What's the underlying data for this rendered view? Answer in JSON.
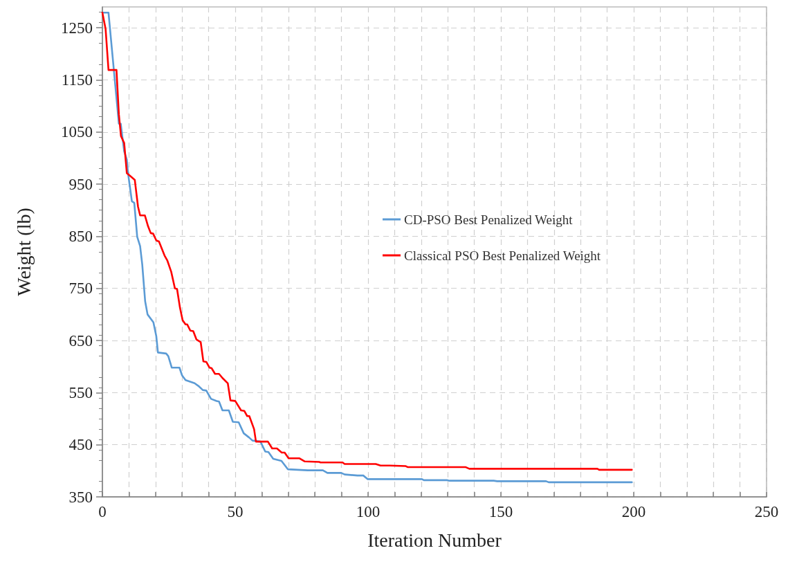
{
  "chart_data": {
    "type": "line",
    "xlabel": "Iteration Number",
    "ylabel": "Weight (lb)",
    "xlim": [
      0,
      250
    ],
    "xticks": [
      0,
      {
        "value": 10,
        "label": null
      },
      {
        "value": 20,
        "label": null
      },
      {
        "value": 30,
        "label": null
      },
      {
        "value": 40,
        "label": null
      },
      50,
      {
        "value": 60,
        "label": null
      },
      {
        "value": 70,
        "label": null
      },
      {
        "value": 80,
        "label": null
      },
      {
        "value": 90,
        "label": null
      },
      100,
      {
        "value": 110,
        "label": null
      },
      {
        "value": 120,
        "label": null
      },
      {
        "value": 130,
        "label": null
      },
      {
        "value": 140,
        "label": null
      },
      150,
      {
        "value": 160,
        "label": null
      },
      {
        "value": 170,
        "label": null
      },
      {
        "value": 180,
        "label": null
      },
      {
        "value": 190,
        "label": null
      },
      200,
      {
        "value": 210,
        "label": null
      },
      {
        "value": 220,
        "label": null
      },
      {
        "value": 230,
        "label": null
      },
      {
        "value": 240,
        "label": null
      },
      250
    ],
    "ylim": [
      350,
      1290
    ],
    "yticks": [
      350,
      450,
      550,
      650,
      750,
      850,
      950,
      1050,
      1150,
      1250
    ],
    "grid": true,
    "legend": "right",
    "marker": "none",
    "line_style": "solid",
    "series": [
      {
        "name": "CD-PSO Best Penalized Weight",
        "color": "#5b9bd5",
        "x": [
          0,
          2.3,
          6.2,
          6.9,
          8.2,
          9.2,
          9.6,
          11.1,
          12,
          13.1,
          14.2,
          15,
          16.1,
          17,
          19.2,
          20.3,
          20.9,
          24,
          24.8,
          26.1,
          29,
          30,
          31.3,
          33,
          34.7,
          36.1,
          37.8,
          39.1,
          40.9,
          43,
          43.9,
          45.2,
          47.6,
          49.1,
          51.3,
          53.2,
          55.2,
          56.5,
          59.5,
          61.3,
          62.5,
          64.3,
          67.4,
          69.8,
          73.5,
          77.3,
          83,
          84.7,
          89.9,
          91.2,
          96,
          98.2,
          99.9,
          120.3,
          121,
          129.7,
          130.7,
          147.3,
          148.6,
          167,
          168,
          199.3
        ],
        "values": [
          1279,
          1279,
          1066,
          1066,
          1013,
          997,
          973,
          917,
          914,
          849,
          831,
          796,
          725,
          700,
          685,
          658,
          627,
          625,
          620,
          598,
          598,
          583,
          574,
          571,
          568,
          563,
          555,
          554,
          538,
          534,
          533,
          516,
          516,
          494,
          493,
          472,
          464,
          458,
          456,
          437,
          436,
          423,
          419,
          403,
          402,
          401,
          401,
          396,
          396,
          393,
          391,
          391,
          384,
          384,
          382,
          382,
          381,
          381,
          380,
          380,
          378,
          378
        ]
      },
      {
        "name": "Classical PSO Best Penalized Weight",
        "color": "#ff0000",
        "x": [
          0,
          1.2,
          2.3,
          5.3,
          6.2,
          7,
          8.2,
          9.2,
          10.4,
          12.2,
          13.4,
          14.2,
          16,
          17.2,
          18.2,
          19.1,
          20.3,
          21.3,
          23.4,
          24.4,
          25.9,
          27.3,
          28.1,
          29.2,
          30.2,
          31.3,
          31.9,
          33.1,
          34.2,
          35.4,
          37,
          38,
          39.1,
          40.3,
          41.1,
          42.4,
          43.9,
          45.2,
          47.2,
          48.2,
          50,
          52.2,
          53.4,
          54.5,
          55.3,
          57.1,
          57.8,
          62.3,
          63.9,
          65.7,
          67.5,
          68.6,
          70.1,
          74.2,
          76.2,
          81.6,
          82.1,
          90.4,
          91.2,
          102.9,
          104.7,
          108.1,
          114.2,
          115,
          136.8,
          138.1,
          186.3,
          187,
          199.3
        ],
        "values": [
          1279,
          1248,
          1169,
          1169,
          1084,
          1042,
          1029,
          971,
          966,
          958,
          907,
          890,
          890,
          869,
          856,
          855,
          842,
          840,
          813,
          804,
          782,
          750,
          749,
          713,
          689,
          681,
          681,
          669,
          668,
          652,
          647,
          610,
          609,
          598,
          597,
          586,
          586,
          578,
          568,
          535,
          534,
          516,
          515,
          505,
          505,
          480,
          456,
          456,
          443,
          443,
          435,
          435,
          424,
          424,
          418,
          417,
          416,
          416,
          413,
          413,
          410,
          410,
          409,
          407,
          407,
          404,
          404,
          402,
          402
        ]
      }
    ]
  }
}
